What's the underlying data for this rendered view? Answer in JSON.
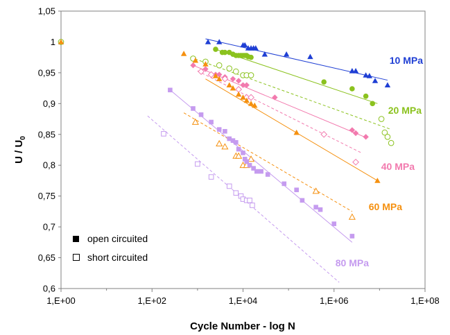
{
  "chart_data": {
    "type": "scatter",
    "title": "",
    "xlabel": "Cycle Number - log N",
    "ylabel": "U / U",
    "ylabel_subscript": "0",
    "x_scale": "log",
    "xlim": [
      1,
      100000000
    ],
    "ylim": [
      0.6,
      1.05
    ],
    "x_ticks": [
      1,
      100,
      10000,
      1000000,
      100000000
    ],
    "x_tick_labels": [
      "1,E+00",
      "1,E+02",
      "1,E+04",
      "1,E+06",
      "1,E+08"
    ],
    "y_ticks": [
      0.6,
      0.65,
      0.7,
      0.75,
      0.8,
      0.85,
      0.9,
      0.95,
      1.0,
      1.05
    ],
    "y_tick_labels": [
      "0,6",
      "0,65",
      "0,7",
      "0,75",
      "0,8",
      "0,85",
      "0,9",
      "0,95",
      "1",
      "1,05"
    ],
    "grid": false,
    "legend": {
      "placement": "bottom-left",
      "entries": [
        {
          "label": "open circuited",
          "marker": "filled-square"
        },
        {
          "label": "short circuited",
          "marker": "open-square"
        }
      ]
    },
    "series": [
      {
        "name": "10 MPa",
        "color": "#1f3fd4",
        "marker": "triangle",
        "filled": true,
        "points": [
          [
            1,
            1
          ],
          [
            1700,
            1.0
          ],
          [
            3000,
            1.0
          ],
          [
            10000,
            0.995
          ],
          [
            11000,
            0.995
          ],
          [
            13000,
            0.99
          ],
          [
            15000,
            0.99
          ],
          [
            17000,
            0.99
          ],
          [
            19000,
            0.99
          ],
          [
            30000,
            0.98
          ],
          [
            90000,
            0.98
          ],
          [
            300000,
            0.976
          ],
          [
            2500000,
            0.953
          ],
          [
            3000000,
            0.953
          ],
          [
            5000000,
            0.946
          ],
          [
            6000000,
            0.945
          ],
          [
            8000000,
            0.937
          ],
          [
            15000000,
            0.93
          ]
        ],
        "trendline": {
          "style": "solid",
          "from": [
            1500,
            1.005
          ],
          "to": [
            15000000,
            0.938
          ]
        }
      },
      {
        "name": "20 MPa",
        "color": "#8bc21e",
        "marker": "circle",
        "filled": true,
        "points": [
          [
            2500,
            0.988
          ],
          [
            3500,
            0.983
          ],
          [
            4000,
            0.983
          ],
          [
            5000,
            0.983
          ],
          [
            6000,
            0.98
          ],
          [
            7000,
            0.978
          ],
          [
            8000,
            0.978
          ],
          [
            9000,
            0.978
          ],
          [
            10000,
            0.978
          ],
          [
            11000,
            0.978
          ],
          [
            12000,
            0.978
          ],
          [
            13000,
            0.976
          ],
          [
            15000,
            0.975
          ],
          [
            600000,
            0.935
          ],
          [
            2500000,
            0.924
          ],
          [
            5000000,
            0.912
          ],
          [
            7000000,
            0.9
          ]
        ],
        "trendline": {
          "style": "solid",
          "from": [
            2500,
            0.988
          ],
          "to": [
            9000000,
            0.9
          ]
        }
      },
      {
        "name": "20 MPa",
        "color": "#8bc21e",
        "marker": "circle",
        "filled": false,
        "points": [
          [
            1,
            1
          ],
          [
            800,
            0.973
          ],
          [
            1500,
            0.968
          ],
          [
            3000,
            0.962
          ],
          [
            5000,
            0.957
          ],
          [
            7000,
            0.952
          ],
          [
            10000,
            0.946
          ],
          [
            12000,
            0.946
          ],
          [
            15000,
            0.946
          ],
          [
            11000000,
            0.875
          ],
          [
            13000000,
            0.853
          ],
          [
            15000000,
            0.846
          ],
          [
            18000000,
            0.836
          ]
        ],
        "trendline": {
          "style": "dashed",
          "from": [
            700,
            0.975
          ],
          "to": [
            18000000,
            0.858
          ]
        }
      },
      {
        "name": "40 MPa",
        "color": "#f27aae",
        "marker": "diamond",
        "filled": true,
        "points": [
          [
            800,
            0.962
          ],
          [
            1500,
            0.956
          ],
          [
            2500,
            0.947
          ],
          [
            3000,
            0.947
          ],
          [
            4000,
            0.943
          ],
          [
            6000,
            0.94
          ],
          [
            8000,
            0.937
          ],
          [
            10000,
            0.93
          ],
          [
            12000,
            0.93
          ],
          [
            50000,
            0.91
          ],
          [
            2500000,
            0.857
          ],
          [
            3000000,
            0.852
          ],
          [
            5000000,
            0.846
          ]
        ],
        "trendline": {
          "style": "solid",
          "from": [
            800,
            0.962
          ],
          "to": [
            5000000,
            0.845
          ]
        }
      },
      {
        "name": "40 MPa",
        "color": "#f27aae",
        "marker": "diamond",
        "filled": false,
        "points": [
          [
            1200,
            0.952
          ],
          [
            2000,
            0.947
          ],
          [
            4000,
            0.94
          ],
          [
            8000,
            0.923
          ],
          [
            12000,
            0.91
          ],
          [
            15000,
            0.91
          ],
          [
            600000,
            0.85
          ],
          [
            3000000,
            0.805
          ]
        ],
        "trendline": {
          "style": "dashed",
          "from": [
            1000,
            0.953
          ],
          "to": [
            4000000,
            0.82
          ]
        }
      },
      {
        "name": "60 MPa",
        "color": "#f5900f",
        "marker": "triangle",
        "filled": true,
        "points": [
          [
            1,
            1
          ],
          [
            500,
            0.981
          ],
          [
            900,
            0.97
          ],
          [
            1500,
            0.964
          ],
          [
            2500,
            0.945
          ],
          [
            3000,
            0.94
          ],
          [
            5000,
            0.93
          ],
          [
            6000,
            0.925
          ],
          [
            8000,
            0.915
          ],
          [
            10000,
            0.91
          ],
          [
            12000,
            0.905
          ],
          [
            15000,
            0.9
          ],
          [
            18000,
            0.897
          ],
          [
            150000,
            0.853
          ],
          [
            9000000,
            0.775
          ]
        ],
        "trendline": {
          "style": "solid",
          "from": [
            1500,
            0.94
          ],
          "to": [
            9000000,
            0.775
          ]
        }
      },
      {
        "name": "60 MPa",
        "color": "#f5900f",
        "marker": "triangle",
        "filled": false,
        "points": [
          [
            900,
            0.87
          ],
          [
            3000,
            0.835
          ],
          [
            4000,
            0.83
          ],
          [
            7000,
            0.815
          ],
          [
            8000,
            0.815
          ],
          [
            10000,
            0.8
          ],
          [
            12000,
            0.8
          ],
          [
            15000,
            0.81
          ],
          [
            400000,
            0.758
          ],
          [
            2500000,
            0.716
          ]
        ],
        "trendline": {
          "style": "dashed",
          "from": [
            500,
            0.885
          ],
          "to": [
            2500000,
            0.725
          ]
        }
      },
      {
        "name": "80 MPa",
        "color": "#c59bef",
        "marker": "square",
        "filled": true,
        "points": [
          [
            250,
            0.922
          ],
          [
            800,
            0.892
          ],
          [
            1200,
            0.882
          ],
          [
            2000,
            0.87
          ],
          [
            3000,
            0.858
          ],
          [
            4000,
            0.855
          ],
          [
            5000,
            0.843
          ],
          [
            6000,
            0.84
          ],
          [
            7000,
            0.837
          ],
          [
            8000,
            0.826
          ],
          [
            10000,
            0.82
          ],
          [
            11000,
            0.81
          ],
          [
            12000,
            0.806
          ],
          [
            14000,
            0.8
          ],
          [
            17000,
            0.795
          ],
          [
            20000,
            0.79
          ],
          [
            25000,
            0.79
          ],
          [
            35000,
            0.785
          ],
          [
            80000,
            0.77
          ],
          [
            150000,
            0.76
          ],
          [
            200000,
            0.743
          ],
          [
            400000,
            0.732
          ],
          [
            500000,
            0.728
          ],
          [
            1000000,
            0.705
          ],
          [
            2500000,
            0.685
          ]
        ],
        "trendline": {
          "style": "solid",
          "from": [
            250,
            0.922
          ],
          "to": [
            2500000,
            0.675
          ]
        }
      },
      {
        "name": "80 MPa",
        "color": "#c59bef",
        "marker": "square",
        "filled": false,
        "points": [
          [
            180,
            0.851
          ],
          [
            1000,
            0.802
          ],
          [
            2000,
            0.781
          ],
          [
            5000,
            0.766
          ],
          [
            7000,
            0.755
          ],
          [
            9000,
            0.75
          ],
          [
            10000,
            0.745
          ],
          [
            12000,
            0.743
          ],
          [
            14000,
            0.743
          ],
          [
            16000,
            0.735
          ]
        ],
        "trendline": {
          "style": "dashed",
          "from": [
            80,
            0.88
          ],
          "to": [
            1300000,
            0.61
          ]
        }
      }
    ],
    "series_labels": [
      {
        "text": "10 MPa",
        "color": "#1f3fd4"
      },
      {
        "text": "20 MPa",
        "color": "#8bc21e"
      },
      {
        "text": "40 MPa",
        "color": "#f27aae"
      },
      {
        "text": "60 MPa",
        "color": "#f5900f"
      },
      {
        "text": "80 MPa",
        "color": "#c59bef"
      }
    ]
  }
}
